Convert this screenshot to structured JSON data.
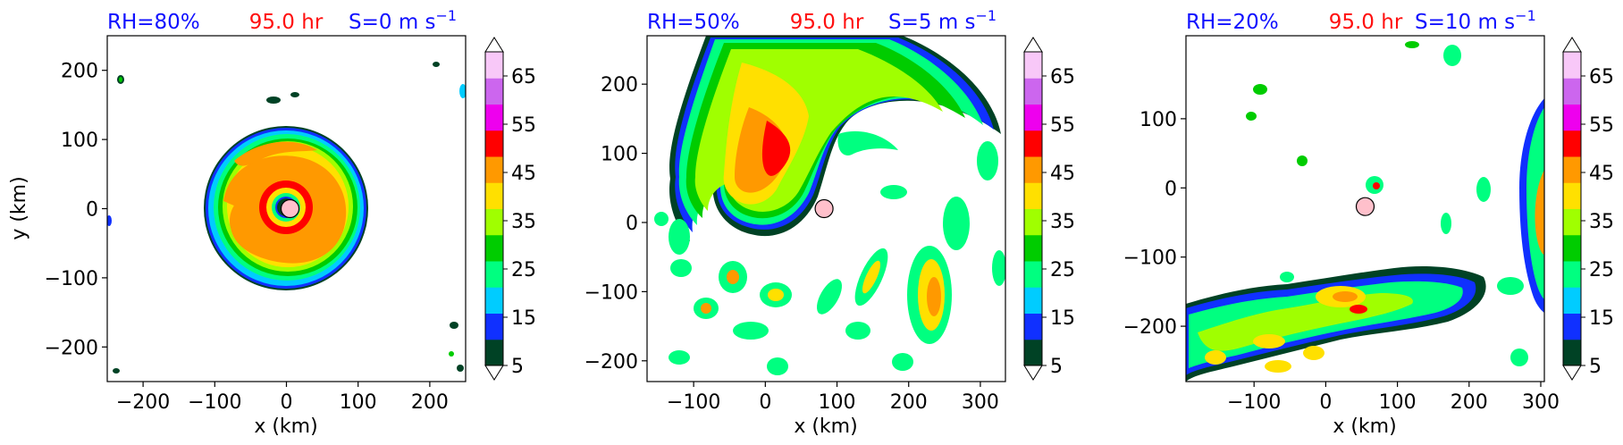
{
  "colors": {
    "title_blue": "#1010ff",
    "title_red": "#ff1010",
    "center_marker_fill": "#ffc0cb",
    "levels": [
      "#004225",
      "#1030ff",
      "#00ccff",
      "#00ff80",
      "#00cc00",
      "#a0ff00",
      "#ffe000",
      "#ff9900",
      "#ff0000",
      "#ee00ee",
      "#cc66ee",
      "#f8c8f8"
    ]
  },
  "chart_data": [
    {
      "type": "contourf",
      "title_left": "RH=80%",
      "title_center": "95.0 hr",
      "title_right": "S=0 m s",
      "title_right_superscript": "−1",
      "xlabel": "x (km)",
      "ylabel": "y (km)",
      "xlim": [
        -250,
        250
      ],
      "ylim": [
        -250,
        250
      ],
      "xticks": [
        -200,
        -100,
        0,
        100,
        200
      ],
      "xtick_labels": [
        "−200",
        "−100",
        "0",
        "100",
        "200"
      ],
      "yticks": [
        -200,
        -100,
        0,
        100,
        200
      ],
      "ytick_labels": [
        "−200",
        "−100",
        "0",
        "100",
        "200"
      ],
      "storm_center": [
        5,
        0
      ],
      "colorbar": {
        "levels": [
          5,
          10,
          15,
          20,
          25,
          30,
          35,
          40,
          45,
          50,
          55,
          60,
          65,
          70
        ],
        "tick_values": [
          5,
          15,
          25,
          35,
          45,
          55,
          65
        ],
        "tick_labels": [
          "5",
          "15",
          "25",
          "35",
          "45",
          "55",
          "65"
        ],
        "extend": "both"
      }
    },
    {
      "type": "contourf",
      "title_left": "RH=50%",
      "title_center": "95.0 hr",
      "title_right": "S=5 m s",
      "title_right_superscript": "−1",
      "xlabel": "x (km)",
      "ylabel": "",
      "xlim": [
        -165,
        335
      ],
      "ylim": [
        -230,
        270
      ],
      "xticks": [
        -100,
        0,
        100,
        200,
        300
      ],
      "xtick_labels": [
        "−100",
        "0",
        "100",
        "200",
        "300"
      ],
      "yticks": [
        -200,
        -100,
        0,
        100,
        200
      ],
      "ytick_labels": [
        "−200",
        "−100",
        "0",
        "100",
        "200"
      ],
      "storm_center": [
        82,
        20
      ],
      "colorbar": {
        "levels": [
          5,
          10,
          15,
          20,
          25,
          30,
          35,
          40,
          45,
          50,
          55,
          60,
          65,
          70
        ],
        "tick_values": [
          5,
          15,
          25,
          35,
          45,
          55,
          65
        ],
        "tick_labels": [
          "5",
          "15",
          "25",
          "35",
          "45",
          "55",
          "65"
        ],
        "extend": "both"
      }
    },
    {
      "type": "contourf",
      "title_left": "RH=20%",
      "title_center": "95.0 hr",
      "title_right": "S=10 m s",
      "title_right_superscript": "−1",
      "xlabel": "x (km)",
      "ylabel": "",
      "xlim": [
        -195,
        305
      ],
      "ylim": [
        -280,
        220
      ],
      "xticks": [
        -100,
        0,
        100,
        200,
        300
      ],
      "xtick_labels": [
        "−100",
        "0",
        "100",
        "200",
        "300"
      ],
      "yticks": [
        -200,
        -100,
        0,
        100
      ],
      "ytick_labels": [
        "−200",
        "−100",
        "0",
        "100"
      ],
      "storm_center": [
        55,
        -27
      ],
      "colorbar": {
        "levels": [
          5,
          10,
          15,
          20,
          25,
          30,
          35,
          40,
          45,
          50,
          55,
          60,
          65,
          70
        ],
        "tick_values": [
          5,
          15,
          25,
          35,
          45,
          55,
          65
        ],
        "tick_labels": [
          "5",
          "15",
          "25",
          "35",
          "45",
          "55",
          "65"
        ],
        "extend": "both"
      }
    }
  ]
}
